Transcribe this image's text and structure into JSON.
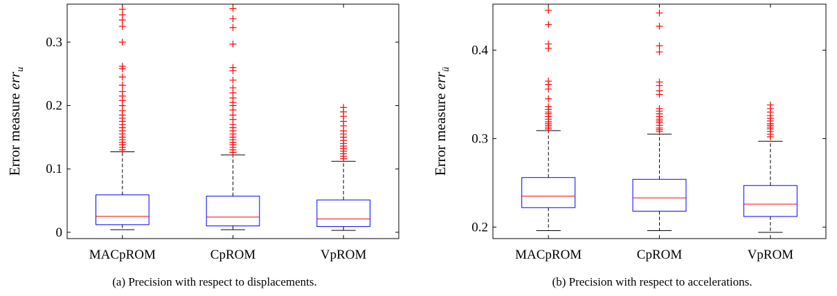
{
  "chart_data": [
    {
      "type": "box",
      "caption": "(a) Precision with respect to displacements.",
      "ylabel": "Error measure ",
      "ylabel_var": "err",
      "ylabel_sub": "u",
      "categories": [
        "MACpROM",
        "CpROM",
        "VpROM"
      ],
      "ylim": [
        -0.01,
        0.36
      ],
      "yticks": [
        0,
        0.1,
        0.2,
        0.3
      ],
      "ytick_labels": [
        "0",
        "0.1",
        "0.2",
        "0.3"
      ],
      "boxes": [
        {
          "name": "MACpROM",
          "whisker_low": 0.004,
          "q1": 0.012,
          "median": 0.025,
          "q3": 0.059,
          "whisker_high": 0.127,
          "outliers": [
            0.13,
            0.134,
            0.138,
            0.142,
            0.146,
            0.15,
            0.155,
            0.16,
            0.165,
            0.17,
            0.175,
            0.18,
            0.185,
            0.192,
            0.2,
            0.208,
            0.215,
            0.222,
            0.232,
            0.245,
            0.258,
            0.262,
            0.3,
            0.325,
            0.335,
            0.343,
            0.352
          ]
        },
        {
          "name": "CpROM",
          "whisker_low": 0.004,
          "q1": 0.01,
          "median": 0.024,
          "q3": 0.057,
          "whisker_high": 0.122,
          "outliers": [
            0.126,
            0.13,
            0.134,
            0.138,
            0.142,
            0.146,
            0.15,
            0.155,
            0.16,
            0.165,
            0.17,
            0.178,
            0.185,
            0.193,
            0.2,
            0.205,
            0.212,
            0.22,
            0.228,
            0.24,
            0.255,
            0.26,
            0.297,
            0.323,
            0.337,
            0.353
          ]
        },
        {
          "name": "VpROM",
          "whisker_low": 0.003,
          "q1": 0.009,
          "median": 0.021,
          "q3": 0.051,
          "whisker_high": 0.112,
          "outliers": [
            0.116,
            0.12,
            0.124,
            0.128,
            0.132,
            0.136,
            0.14,
            0.145,
            0.15,
            0.155,
            0.16,
            0.168,
            0.175,
            0.183,
            0.19,
            0.197
          ]
        }
      ]
    },
    {
      "type": "box",
      "caption": "(b) Precision with respect to accelerations.",
      "ylabel": "Error measure ",
      "ylabel_var": "err",
      "ylabel_sub": "ü",
      "categories": [
        "MACpROM",
        "CpROM",
        "VpROM"
      ],
      "ylim": [
        0.187,
        0.452
      ],
      "yticks": [
        0.2,
        0.3,
        0.4
      ],
      "ytick_labels": [
        "0.2",
        "0.3",
        "0.4"
      ],
      "boxes": [
        {
          "name": "MACpROM",
          "whisker_low": 0.196,
          "q1": 0.222,
          "median": 0.235,
          "q3": 0.256,
          "whisker_high": 0.309,
          "outliers": [
            0.311,
            0.313,
            0.315,
            0.317,
            0.319,
            0.322,
            0.325,
            0.328,
            0.33,
            0.333,
            0.336,
            0.345,
            0.356,
            0.361,
            0.365,
            0.402,
            0.407,
            0.429,
            0.445
          ]
        },
        {
          "name": "CpROM",
          "whisker_low": 0.196,
          "q1": 0.218,
          "median": 0.233,
          "q3": 0.254,
          "whisker_high": 0.305,
          "outliers": [
            0.308,
            0.31,
            0.312,
            0.315,
            0.318,
            0.32,
            0.322,
            0.325,
            0.328,
            0.331,
            0.334,
            0.35,
            0.354,
            0.36,
            0.364,
            0.398,
            0.405,
            0.427,
            0.442
          ]
        },
        {
          "name": "VpROM",
          "whisker_low": 0.194,
          "q1": 0.212,
          "median": 0.226,
          "q3": 0.247,
          "whisker_high": 0.297,
          "outliers": [
            0.302,
            0.305,
            0.308,
            0.311,
            0.313,
            0.315,
            0.317,
            0.32,
            0.323,
            0.326,
            0.33,
            0.334,
            0.338
          ]
        }
      ]
    }
  ],
  "colors": {
    "box": "#0000ff",
    "median": "#ff0000",
    "outlier": "#ff0000",
    "whisker": "#000000"
  }
}
